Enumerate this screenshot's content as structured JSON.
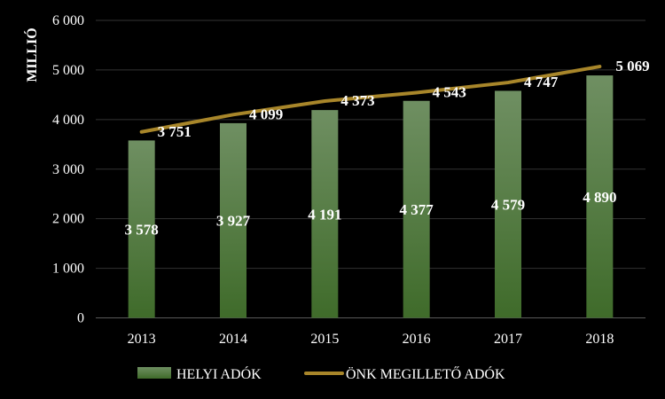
{
  "chart_data": {
    "type": "bar",
    "categories": [
      "2013",
      "2014",
      "2015",
      "2016",
      "2017",
      "2018"
    ],
    "ylabel": "MILLIÓ",
    "ylim": [
      0,
      6000
    ],
    "yticks": [
      0,
      1000,
      2000,
      3000,
      4000,
      5000,
      6000
    ],
    "ytick_labels": [
      "0",
      "1 000",
      "2 000",
      "3 000",
      "4 000",
      "5 000",
      "6 000"
    ],
    "grid": true,
    "legend_position": "bottom",
    "series": [
      {
        "name": "HELYI ADÓK",
        "type": "bar",
        "color": "#4e7a3a",
        "values": [
          3578,
          3927,
          4191,
          4377,
          4579,
          4890
        ],
        "labels": [
          "3 578",
          "3 927",
          "4 191",
          "4 377",
          "4 579",
          "4 890"
        ]
      },
      {
        "name": "ÖNK MEGILLETŐ ADÓK",
        "type": "line",
        "color": "#a8862a",
        "values": [
          3751,
          4099,
          4373,
          4543,
          4747,
          5069
        ],
        "labels": [
          "3 751",
          "4 099",
          "4 373",
          "4 543",
          "4 747",
          "5 069"
        ]
      }
    ]
  }
}
